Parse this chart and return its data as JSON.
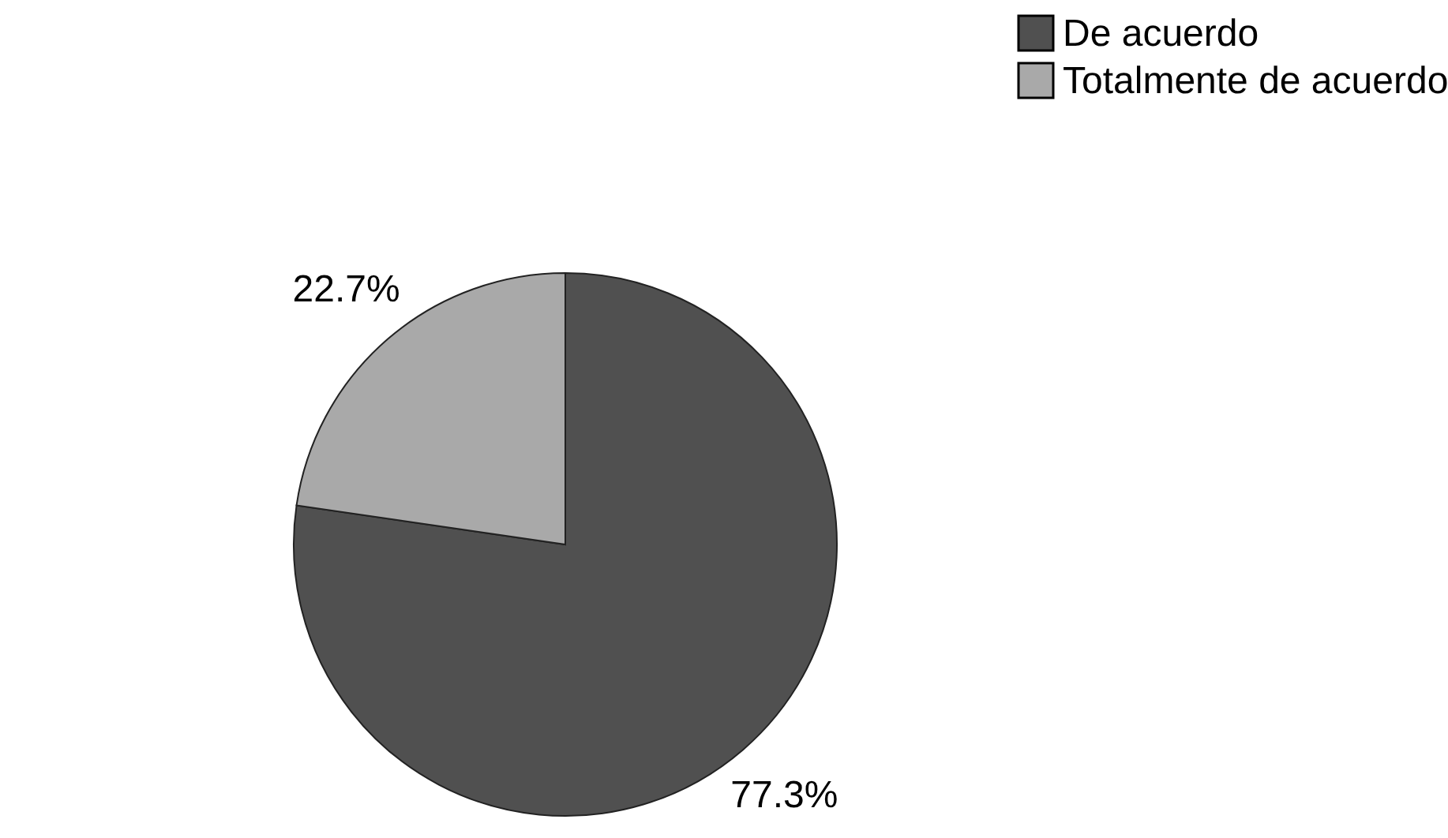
{
  "chart_data": {
    "type": "pie",
    "categories": [
      "De acuerdo",
      "Totalmente de acuerdo"
    ],
    "values": [
      77.3,
      22.7
    ],
    "colors": [
      "#505050",
      "#a9a9a9"
    ],
    "value_labels": [
      "77.3%",
      "22.7%"
    ],
    "legend": "top right"
  }
}
